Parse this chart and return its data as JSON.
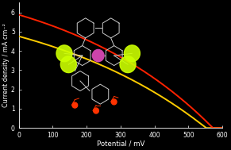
{
  "background_color": "#000000",
  "plot_bg_color": "#000000",
  "ylabel": "Current density / mA cm⁻²",
  "xlabel": "Potential / mV",
  "xlim": [
    0,
    600
  ],
  "ylim": [
    0,
    6.5
  ],
  "yticks": [
    0,
    1,
    2,
    3,
    4,
    5,
    6
  ],
  "xticks": [
    0,
    100,
    200,
    300,
    400,
    500,
    600
  ],
  "tick_color": "#ffffff",
  "label_color": "#ffffff",
  "spine_color": "#ffffff",
  "line1_color": "#ff2200",
  "line2_color": "#ffcc00",
  "line1_jsc": 5.88,
  "line1_voc": 572,
  "line1_n": 18.0,
  "line2_jsc": 4.76,
  "line2_voc": 552,
  "line2_n": 20.0,
  "ylabel_fontsize": 5.8,
  "xlabel_fontsize": 6.2,
  "tick_fontsize": 5.5,
  "linewidth": 1.4
}
